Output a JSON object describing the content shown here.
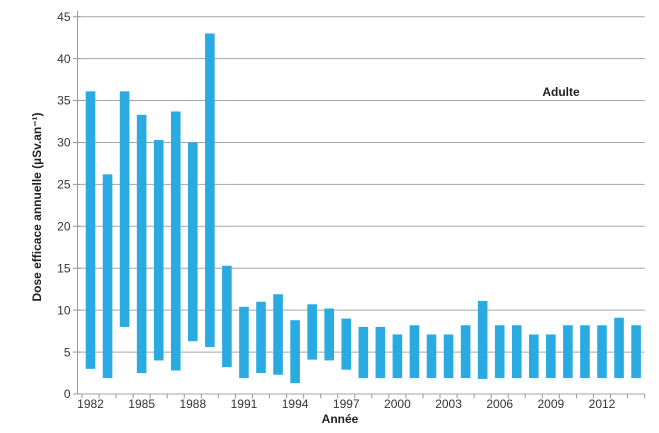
{
  "chart_data": {
    "type": "bar",
    "subtype": "floating-range-columns",
    "title": "",
    "annotation": "Adulte",
    "xlabel": "Année",
    "ylabel": "Dose efficace annuelle (µSv.an⁻¹)",
    "ylim": [
      0,
      45
    ],
    "ytick_step": 5,
    "grid": "horizontal",
    "legend_position": "none",
    "bar_color": "#29abe2",
    "gridline_color": "#a6a6a6",
    "axis_color": "#999999",
    "tick_text_color": "#33333b",
    "xtick_labeled_years": [
      1982,
      1985,
      1988,
      1991,
      1994,
      1997,
      2000,
      2003,
      2006,
      2009,
      2012
    ],
    "bars": [
      {
        "year": 1982,
        "low": 3.0,
        "high": 36.1
      },
      {
        "year": 1983,
        "low": 1.9,
        "high": 26.2
      },
      {
        "year": 1984,
        "low": 8.0,
        "high": 36.1
      },
      {
        "year": 1985,
        "low": 2.5,
        "high": 33.3
      },
      {
        "year": 1986,
        "low": 4.0,
        "high": 30.3
      },
      {
        "year": 1987,
        "low": 2.8,
        "high": 33.7
      },
      {
        "year": 1988,
        "low": 6.3,
        "high": 30.0
      },
      {
        "year": 1989,
        "low": 5.6,
        "high": 43.0
      },
      {
        "year": 1990,
        "low": 3.2,
        "high": 15.3
      },
      {
        "year": 1991,
        "low": 1.9,
        "high": 10.4
      },
      {
        "year": 1992,
        "low": 2.5,
        "high": 11.0
      },
      {
        "year": 1993,
        "low": 2.3,
        "high": 11.9
      },
      {
        "year": 1994,
        "low": 1.3,
        "high": 8.8
      },
      {
        "year": 1995,
        "low": 4.1,
        "high": 10.7
      },
      {
        "year": 1996,
        "low": 4.0,
        "high": 10.2
      },
      {
        "year": 1997,
        "low": 2.9,
        "high": 9.0
      },
      {
        "year": 1998,
        "low": 1.9,
        "high": 8.0
      },
      {
        "year": 1999,
        "low": 1.9,
        "high": 8.0
      },
      {
        "year": 2000,
        "low": 1.9,
        "high": 7.1
      },
      {
        "year": 2001,
        "low": 1.9,
        "high": 8.2
      },
      {
        "year": 2002,
        "low": 1.9,
        "high": 7.1
      },
      {
        "year": 2003,
        "low": 1.9,
        "high": 7.1
      },
      {
        "year": 2004,
        "low": 1.9,
        "high": 8.2
      },
      {
        "year": 2005,
        "low": 1.8,
        "high": 11.1
      },
      {
        "year": 2006,
        "low": 1.9,
        "high": 8.2
      },
      {
        "year": 2007,
        "low": 1.9,
        "high": 8.2
      },
      {
        "year": 2008,
        "low": 1.9,
        "high": 7.1
      },
      {
        "year": 2009,
        "low": 1.9,
        "high": 7.1
      },
      {
        "year": 2010,
        "low": 1.9,
        "high": 8.2
      },
      {
        "year": 2011,
        "low": 1.9,
        "high": 8.2
      },
      {
        "year": 2012,
        "low": 1.9,
        "high": 8.2
      },
      {
        "year": 2013,
        "low": 1.9,
        "high": 9.1
      },
      {
        "year": 2014,
        "low": 1.9,
        "high": 8.2
      }
    ]
  }
}
